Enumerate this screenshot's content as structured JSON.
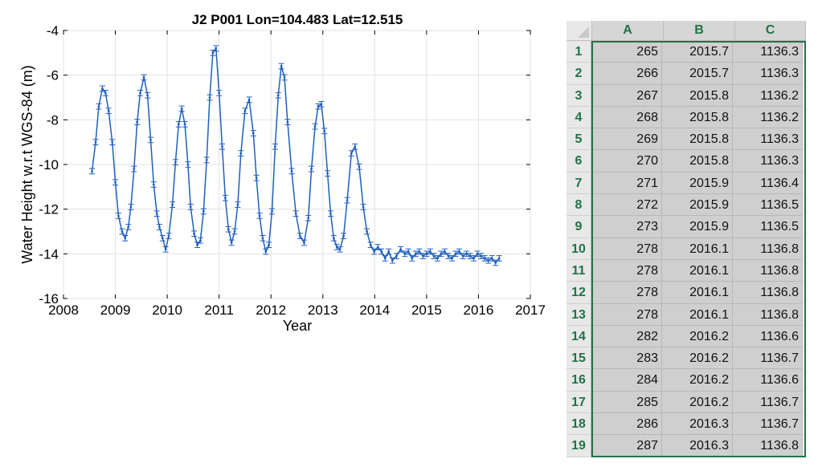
{
  "chart_data": {
    "type": "line",
    "title": "J2 P001 Lon=104.483 Lat=12.515",
    "xlabel": "Year",
    "ylabel": "Water Height w.r.t WGS-84 (m)",
    "xlim": [
      2008,
      2017
    ],
    "ylim": [
      -16,
      -4
    ],
    "xticks": [
      "2008",
      "2009",
      "2010",
      "2011",
      "2012",
      "2013",
      "2014",
      "2015",
      "2016",
      "2017"
    ],
    "yticks": [
      "-4",
      "-6",
      "-8",
      "-10",
      "-12",
      "-14",
      "-16"
    ],
    "grid": true,
    "series_color": "#1f5fbf",
    "series": [
      {
        "x": [
          2008.55,
          2008.62,
          2008.68,
          2008.75,
          2008.81,
          2008.87,
          2008.94,
          2009.0,
          2009.06,
          2009.13,
          2009.19,
          2009.25,
          2009.3,
          2009.36,
          2009.42,
          2009.48,
          2009.55,
          2009.62,
          2009.68,
          2009.74,
          2009.8,
          2009.85,
          2009.91,
          2009.97,
          2010.03,
          2010.1,
          2010.16,
          2010.22,
          2010.28,
          2010.34,
          2010.4,
          2010.45,
          2010.52,
          2010.58,
          2010.64,
          2010.7,
          2010.76,
          2010.82,
          2010.88,
          2010.94,
          2011.0,
          2011.06,
          2011.12,
          2011.18,
          2011.24,
          2011.3,
          2011.36,
          2011.42,
          2011.5,
          2011.58,
          2011.66,
          2011.72,
          2011.78,
          2011.84,
          2011.9,
          2011.96,
          2012.02,
          2012.08,
          2012.14,
          2012.2,
          2012.26,
          2012.32,
          2012.4,
          2012.48,
          2012.56,
          2012.64,
          2012.72,
          2012.78,
          2012.85,
          2012.91,
          2012.97,
          2013.03,
          2013.09,
          2013.15,
          2013.21,
          2013.27,
          2013.33,
          2013.4,
          2013.47,
          2013.55,
          2013.62,
          2013.7,
          2013.78,
          2013.85,
          2013.92,
          2013.99,
          2014.06,
          2014.13,
          2014.2,
          2014.27,
          2014.34,
          2014.42,
          2014.5,
          2014.58,
          2014.65,
          2014.72,
          2014.79,
          2014.86,
          2014.93,
          2015.0,
          2015.07,
          2015.14,
          2015.21,
          2015.28,
          2015.35,
          2015.42,
          2015.49,
          2015.56,
          2015.63,
          2015.7,
          2015.77,
          2015.84,
          2015.91,
          2015.98,
          2016.05,
          2016.12,
          2016.19,
          2016.26,
          2016.33,
          2016.4
        ],
        "y": [
          -10.3,
          -9.0,
          -7.4,
          -6.6,
          -6.8,
          -7.6,
          -9.0,
          -10.8,
          -12.3,
          -13.0,
          -13.3,
          -12.8,
          -11.9,
          -10.2,
          -8.1,
          -6.8,
          -6.1,
          -6.9,
          -8.9,
          -10.9,
          -12.2,
          -12.8,
          -13.3,
          -13.8,
          -13.2,
          -11.8,
          -9.9,
          -8.2,
          -7.5,
          -8.2,
          -10.0,
          -11.9,
          -13.1,
          -13.6,
          -13.4,
          -12.1,
          -9.8,
          -7.0,
          -5.0,
          -4.8,
          -6.8,
          -9.2,
          -11.5,
          -12.9,
          -13.5,
          -13.0,
          -11.8,
          -9.5,
          -7.6,
          -7.1,
          -8.6,
          -10.6,
          -12.3,
          -13.3,
          -13.9,
          -13.6,
          -12.1,
          -9.2,
          -6.9,
          -5.6,
          -6.1,
          -8.1,
          -10.3,
          -12.2,
          -13.2,
          -13.5,
          -12.4,
          -10.2,
          -8.3,
          -7.4,
          -7.3,
          -8.5,
          -10.4,
          -12.2,
          -13.3,
          -13.7,
          -13.8,
          -13.2,
          -11.6,
          -9.5,
          -9.2,
          -10.1,
          -11.9,
          -13.0,
          -13.6,
          -13.9,
          -13.7,
          -13.9,
          -14.2,
          -13.9,
          -14.3,
          -14.1,
          -13.8,
          -14.0,
          -13.9,
          -14.2,
          -14.0,
          -13.9,
          -14.1,
          -14.0,
          -13.9,
          -14.1,
          -14.2,
          -14.0,
          -13.9,
          -14.1,
          -14.2,
          -14.0,
          -13.9,
          -14.1,
          -14.0,
          -14.1,
          -14.2,
          -14.0,
          -14.1,
          -14.2,
          -14.3,
          -14.2,
          -14.4,
          -14.2
        ]
      }
    ]
  },
  "spreadsheet": {
    "columns": [
      "A",
      "B",
      "C"
    ],
    "rows": [
      {
        "n": "1",
        "a": "265",
        "b": "2015.7",
        "c": "1136.3"
      },
      {
        "n": "2",
        "a": "266",
        "b": "2015.7",
        "c": "1136.3"
      },
      {
        "n": "3",
        "a": "267",
        "b": "2015.8",
        "c": "1136.2"
      },
      {
        "n": "4",
        "a": "268",
        "b": "2015.8",
        "c": "1136.2"
      },
      {
        "n": "5",
        "a": "269",
        "b": "2015.8",
        "c": "1136.3"
      },
      {
        "n": "6",
        "a": "270",
        "b": "2015.8",
        "c": "1136.3"
      },
      {
        "n": "7",
        "a": "271",
        "b": "2015.9",
        "c": "1136.4"
      },
      {
        "n": "8",
        "a": "272",
        "b": "2015.9",
        "c": "1136.5"
      },
      {
        "n": "9",
        "a": "273",
        "b": "2015.9",
        "c": "1136.5"
      },
      {
        "n": "10",
        "a": "278",
        "b": "2016.1",
        "c": "1136.8"
      },
      {
        "n": "11",
        "a": "278",
        "b": "2016.1",
        "c": "1136.8"
      },
      {
        "n": "12",
        "a": "278",
        "b": "2016.1",
        "c": "1136.8"
      },
      {
        "n": "13",
        "a": "278",
        "b": "2016.1",
        "c": "1136.8"
      },
      {
        "n": "14",
        "a": "282",
        "b": "2016.2",
        "c": "1136.6"
      },
      {
        "n": "15",
        "a": "283",
        "b": "2016.2",
        "c": "1136.7"
      },
      {
        "n": "16",
        "a": "284",
        "b": "2016.2",
        "c": "1136.6"
      },
      {
        "n": "17",
        "a": "285",
        "b": "2016.2",
        "c": "1136.7"
      },
      {
        "n": "18",
        "a": "286",
        "b": "2016.3",
        "c": "1136.7"
      },
      {
        "n": "19",
        "a": "287",
        "b": "2016.3",
        "c": "1136.8"
      }
    ]
  }
}
